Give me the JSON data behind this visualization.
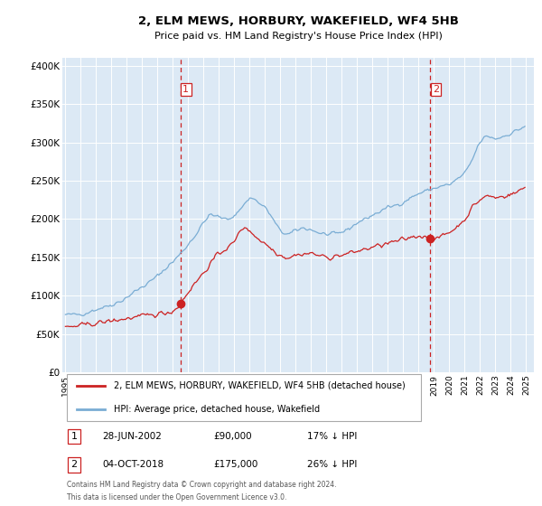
{
  "title": "2, ELM MEWS, HORBURY, WAKEFIELD, WF4 5HB",
  "subtitle": "Price paid vs. HM Land Registry's House Price Index (HPI)",
  "ylim": [
    0,
    410000
  ],
  "yticks": [
    0,
    50000,
    100000,
    150000,
    200000,
    250000,
    300000,
    350000,
    400000
  ],
  "ytick_labels": [
    "£0",
    "£50K",
    "£100K",
    "£150K",
    "£200K",
    "£250K",
    "£300K",
    "£350K",
    "£400K"
  ],
  "hpi_color": "#7aadd4",
  "price_color": "#cc2222",
  "marker_color": "#cc2222",
  "sale1_date": 2002.49,
  "sale1_price": 90000,
  "sale2_date": 2018.75,
  "sale2_price": 175000,
  "vline_color": "#cc2222",
  "legend_label1": "2, ELM MEWS, HORBURY, WAKEFIELD, WF4 5HB (detached house)",
  "legend_label2": "HPI: Average price, detached house, Wakefield",
  "table_row1": [
    "1",
    "28-JUN-2002",
    "£90,000",
    "17% ↓ HPI"
  ],
  "table_row2": [
    "2",
    "04-OCT-2018",
    "£175,000",
    "26% ↓ HPI"
  ],
  "footnote1": "Contains HM Land Registry data © Crown copyright and database right 2024.",
  "footnote2": "This data is licensed under the Open Government Licence v3.0.",
  "background_color": "#ffffff",
  "plot_bg_color": "#dce9f5",
  "grid_color": "#ffffff",
  "xlim_left": 1994.8,
  "xlim_right": 2025.5
}
